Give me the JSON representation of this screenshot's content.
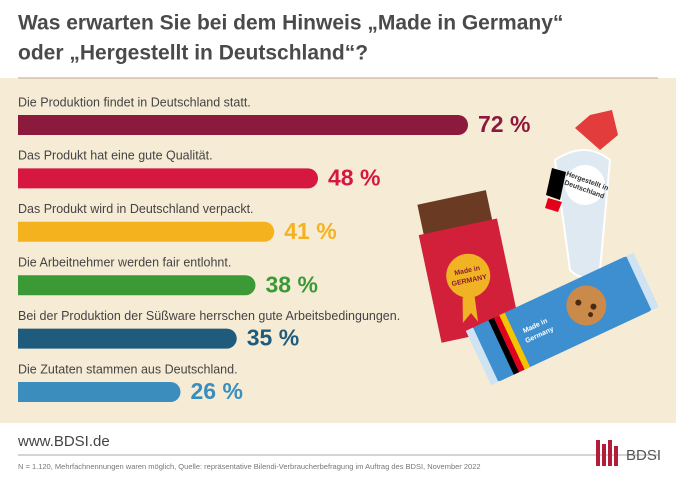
{
  "chart_data": {
    "type": "bar",
    "orientation": "horizontal",
    "title": [
      "Was erwarten Sie bei dem Hinweis „Made in Germany“",
      "oder „Hergestellt in Deutschland“?"
    ],
    "categories": [
      "Die Produktion findet in Deutschland statt.",
      "Das Produkt hat eine gute Qualität.",
      "Das Produkt wird in Deutschland verpackt.",
      "Die Arbeitnehmer werden fair entlohnt.",
      "Bei der Produktion der Süßware herrschen gute Arbeitsbedingungen.",
      "Die Zutaten stammen aus Deutschland."
    ],
    "values": [
      72,
      48,
      41,
      38,
      35,
      26
    ],
    "value_labels": [
      "72 %",
      "48 %",
      "41 %",
      "38 %",
      "35 %",
      "26 %"
    ],
    "colors": [
      "#8c1a3c",
      "#d6173f",
      "#f5b21f",
      "#3b9a35",
      "#1f5b7c",
      "#3a8dbd"
    ]
  },
  "illustration": {
    "chocolate": [
      "Made in",
      "GERMANY"
    ],
    "bag": [
      "Hergestellt in",
      "Deutschland"
    ],
    "cookies": [
      "Made in",
      "Germany"
    ]
  },
  "footer": {
    "website": "www.BDSI.de",
    "note": "N = 1.120, Mehrfachnennungen waren möglich, Quelle: repräsentative Bilendi-Verbraucherbefragung im Auftrag des BDSI, November 2022",
    "logo": "BDSI"
  }
}
